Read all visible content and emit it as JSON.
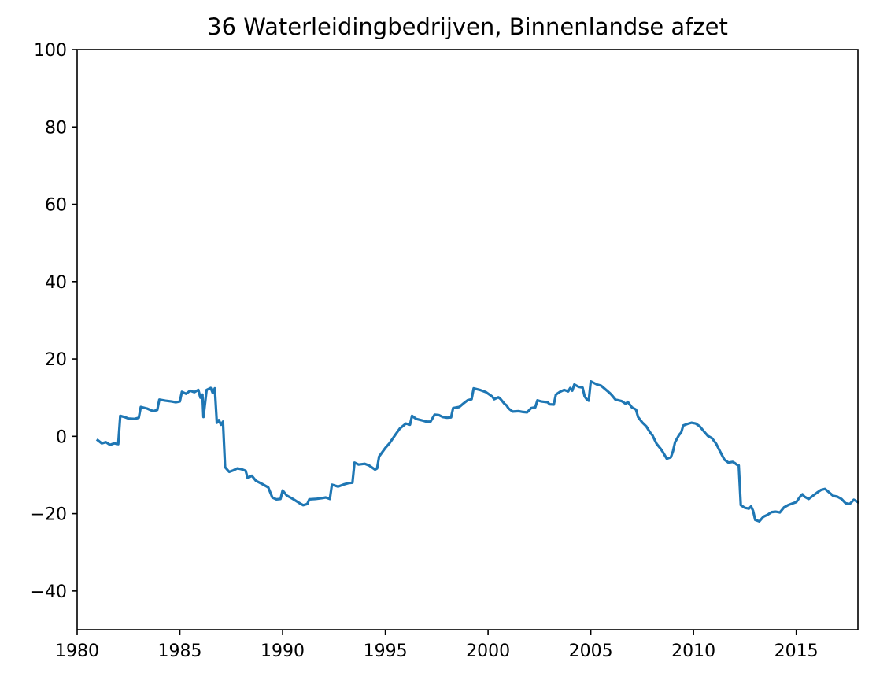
{
  "chart_data": {
    "type": "line",
    "title": "36 Waterleidingbedrijven, Binnenlandse afzet",
    "xlabel": "",
    "ylabel": "",
    "xlim": [
      1980,
      2018
    ],
    "ylim": [
      -50,
      100
    ],
    "xticks": [
      1980,
      1985,
      1990,
      1995,
      2000,
      2005,
      2010,
      2015
    ],
    "yticks": [
      -40,
      -20,
      0,
      20,
      40,
      60,
      80,
      100
    ],
    "ytick_labels": [
      "−40",
      "−20",
      "0",
      "20",
      "40",
      "60",
      "80",
      "100"
    ],
    "grid": false,
    "legend": "none",
    "series": [
      {
        "color": "#1f77b4",
        "points": [
          [
            1981.0,
            -1.0
          ],
          [
            1981.2,
            -1.8
          ],
          [
            1981.4,
            -1.5
          ],
          [
            1981.6,
            -2.2
          ],
          [
            1981.8,
            -1.8
          ],
          [
            1982.0,
            -2.0
          ],
          [
            1982.1,
            5.3
          ],
          [
            1982.3,
            5.0
          ],
          [
            1982.5,
            4.6
          ],
          [
            1982.8,
            4.5
          ],
          [
            1983.0,
            4.8
          ],
          [
            1983.1,
            7.6
          ],
          [
            1983.4,
            7.2
          ],
          [
            1983.7,
            6.5
          ],
          [
            1983.9,
            6.8
          ],
          [
            1984.0,
            9.5
          ],
          [
            1984.3,
            9.2
          ],
          [
            1984.6,
            9.0
          ],
          [
            1984.8,
            8.8
          ],
          [
            1985.0,
            9.0
          ],
          [
            1985.1,
            11.5
          ],
          [
            1985.3,
            11.0
          ],
          [
            1985.5,
            11.8
          ],
          [
            1985.7,
            11.4
          ],
          [
            1985.9,
            12.0
          ],
          [
            1986.0,
            10.0
          ],
          [
            1986.1,
            10.8
          ],
          [
            1986.15,
            5.0
          ],
          [
            1986.3,
            12.0
          ],
          [
            1986.5,
            12.5
          ],
          [
            1986.6,
            11.2
          ],
          [
            1986.7,
            12.4
          ],
          [
            1986.8,
            3.5
          ],
          [
            1986.9,
            4.2
          ],
          [
            1987.0,
            3.0
          ],
          [
            1987.1,
            3.8
          ],
          [
            1987.2,
            -8.0
          ],
          [
            1987.4,
            -9.2
          ],
          [
            1987.6,
            -8.8
          ],
          [
            1987.8,
            -8.3
          ],
          [
            1988.0,
            -8.5
          ],
          [
            1988.2,
            -8.9
          ],
          [
            1988.3,
            -10.8
          ],
          [
            1988.5,
            -10.2
          ],
          [
            1988.7,
            -11.5
          ],
          [
            1989.0,
            -12.3
          ],
          [
            1989.3,
            -13.2
          ],
          [
            1989.5,
            -15.8
          ],
          [
            1989.7,
            -16.3
          ],
          [
            1989.9,
            -16.2
          ],
          [
            1990.0,
            -14.0
          ],
          [
            1990.2,
            -15.3
          ],
          [
            1990.5,
            -16.2
          ],
          [
            1990.8,
            -17.2
          ],
          [
            1991.0,
            -17.8
          ],
          [
            1991.2,
            -17.5
          ],
          [
            1991.3,
            -16.3
          ],
          [
            1991.6,
            -16.2
          ],
          [
            1991.9,
            -16.0
          ],
          [
            1992.1,
            -15.8
          ],
          [
            1992.3,
            -16.2
          ],
          [
            1992.4,
            -12.5
          ],
          [
            1992.7,
            -13.0
          ],
          [
            1993.0,
            -12.4
          ],
          [
            1993.2,
            -12.1
          ],
          [
            1993.4,
            -12.0
          ],
          [
            1993.5,
            -6.8
          ],
          [
            1993.7,
            -7.3
          ],
          [
            1994.0,
            -7.1
          ],
          [
            1994.2,
            -7.5
          ],
          [
            1994.5,
            -8.6
          ],
          [
            1994.6,
            -8.3
          ],
          [
            1994.7,
            -5.2
          ],
          [
            1995.0,
            -3.0
          ],
          [
            1995.2,
            -1.8
          ],
          [
            1995.5,
            0.5
          ],
          [
            1995.7,
            2.0
          ],
          [
            1996.0,
            3.3
          ],
          [
            1996.2,
            3.0
          ],
          [
            1996.3,
            5.3
          ],
          [
            1996.5,
            4.5
          ],
          [
            1996.8,
            4.1
          ],
          [
            1997.0,
            3.8
          ],
          [
            1997.2,
            3.8
          ],
          [
            1997.4,
            5.6
          ],
          [
            1997.6,
            5.5
          ],
          [
            1997.8,
            5.0
          ],
          [
            1998.0,
            4.8
          ],
          [
            1998.2,
            4.9
          ],
          [
            1998.3,
            7.3
          ],
          [
            1998.6,
            7.6
          ],
          [
            1998.8,
            8.5
          ],
          [
            1999.0,
            9.3
          ],
          [
            1999.2,
            9.6
          ],
          [
            1999.3,
            12.4
          ],
          [
            1999.6,
            12.0
          ],
          [
            1999.9,
            11.4
          ],
          [
            2000.2,
            10.3
          ],
          [
            2000.3,
            9.6
          ],
          [
            2000.5,
            10.1
          ],
          [
            2000.6,
            9.7
          ],
          [
            2000.8,
            8.4
          ],
          [
            2000.9,
            8.0
          ],
          [
            2001.0,
            7.2
          ],
          [
            2001.2,
            6.4
          ],
          [
            2001.5,
            6.5
          ],
          [
            2001.7,
            6.3
          ],
          [
            2001.9,
            6.2
          ],
          [
            2002.1,
            7.3
          ],
          [
            2002.3,
            7.5
          ],
          [
            2002.4,
            9.3
          ],
          [
            2002.6,
            9.0
          ],
          [
            2002.9,
            8.8
          ],
          [
            2003.0,
            8.3
          ],
          [
            2003.2,
            8.2
          ],
          [
            2003.3,
            10.8
          ],
          [
            2003.5,
            11.5
          ],
          [
            2003.7,
            12.0
          ],
          [
            2003.9,
            11.6
          ],
          [
            2004.0,
            12.5
          ],
          [
            2004.1,
            11.8
          ],
          [
            2004.2,
            13.4
          ],
          [
            2004.4,
            12.8
          ],
          [
            2004.6,
            12.6
          ],
          [
            2004.7,
            10.3
          ],
          [
            2004.8,
            9.6
          ],
          [
            2004.9,
            9.2
          ],
          [
            2005.0,
            14.2
          ],
          [
            2005.3,
            13.4
          ],
          [
            2005.5,
            13.1
          ],
          [
            2005.7,
            12.2
          ],
          [
            2005.9,
            11.3
          ],
          [
            2006.0,
            10.8
          ],
          [
            2006.2,
            9.5
          ],
          [
            2006.5,
            9.1
          ],
          [
            2006.7,
            8.4
          ],
          [
            2006.8,
            8.9
          ],
          [
            2007.0,
            7.5
          ],
          [
            2007.2,
            6.9
          ],
          [
            2007.3,
            5.0
          ],
          [
            2007.5,
            3.6
          ],
          [
            2007.7,
            2.6
          ],
          [
            2007.9,
            0.9
          ],
          [
            2008.0,
            0.3
          ],
          [
            2008.2,
            -1.9
          ],
          [
            2008.4,
            -3.2
          ],
          [
            2008.5,
            -4.0
          ],
          [
            2008.7,
            -5.8
          ],
          [
            2008.9,
            -5.4
          ],
          [
            2009.0,
            -3.8
          ],
          [
            2009.1,
            -1.5
          ],
          [
            2009.3,
            0.4
          ],
          [
            2009.4,
            1.0
          ],
          [
            2009.5,
            2.8
          ],
          [
            2009.7,
            3.2
          ],
          [
            2009.9,
            3.5
          ],
          [
            2010.1,
            3.3
          ],
          [
            2010.3,
            2.6
          ],
          [
            2010.5,
            1.3
          ],
          [
            2010.7,
            0.1
          ],
          [
            2010.9,
            -0.5
          ],
          [
            2011.1,
            -1.9
          ],
          [
            2011.3,
            -4.0
          ],
          [
            2011.5,
            -6.0
          ],
          [
            2011.7,
            -6.8
          ],
          [
            2011.9,
            -6.6
          ],
          [
            2012.0,
            -6.9
          ],
          [
            2012.1,
            -7.3
          ],
          [
            2012.2,
            -7.5
          ],
          [
            2012.3,
            -17.8
          ],
          [
            2012.5,
            -18.5
          ],
          [
            2012.7,
            -18.7
          ],
          [
            2012.8,
            -18.1
          ],
          [
            2012.9,
            -19.3
          ],
          [
            2013.0,
            -21.6
          ],
          [
            2013.2,
            -22.0
          ],
          [
            2013.4,
            -20.8
          ],
          [
            2013.6,
            -20.3
          ],
          [
            2013.8,
            -19.6
          ],
          [
            2014.0,
            -19.5
          ],
          [
            2014.2,
            -19.7
          ],
          [
            2014.4,
            -18.4
          ],
          [
            2014.6,
            -17.8
          ],
          [
            2014.8,
            -17.4
          ],
          [
            2015.0,
            -17.0
          ],
          [
            2015.2,
            -15.5
          ],
          [
            2015.3,
            -15.0
          ],
          [
            2015.4,
            -15.6
          ],
          [
            2015.6,
            -16.2
          ],
          [
            2015.8,
            -15.4
          ],
          [
            2016.0,
            -14.6
          ],
          [
            2016.2,
            -13.9
          ],
          [
            2016.4,
            -13.6
          ],
          [
            2016.6,
            -14.5
          ],
          [
            2016.8,
            -15.4
          ],
          [
            2017.0,
            -15.6
          ],
          [
            2017.2,
            -16.2
          ],
          [
            2017.4,
            -17.3
          ],
          [
            2017.6,
            -17.5
          ],
          [
            2017.8,
            -16.4
          ],
          [
            2018.0,
            -17.0
          ]
        ]
      }
    ]
  }
}
